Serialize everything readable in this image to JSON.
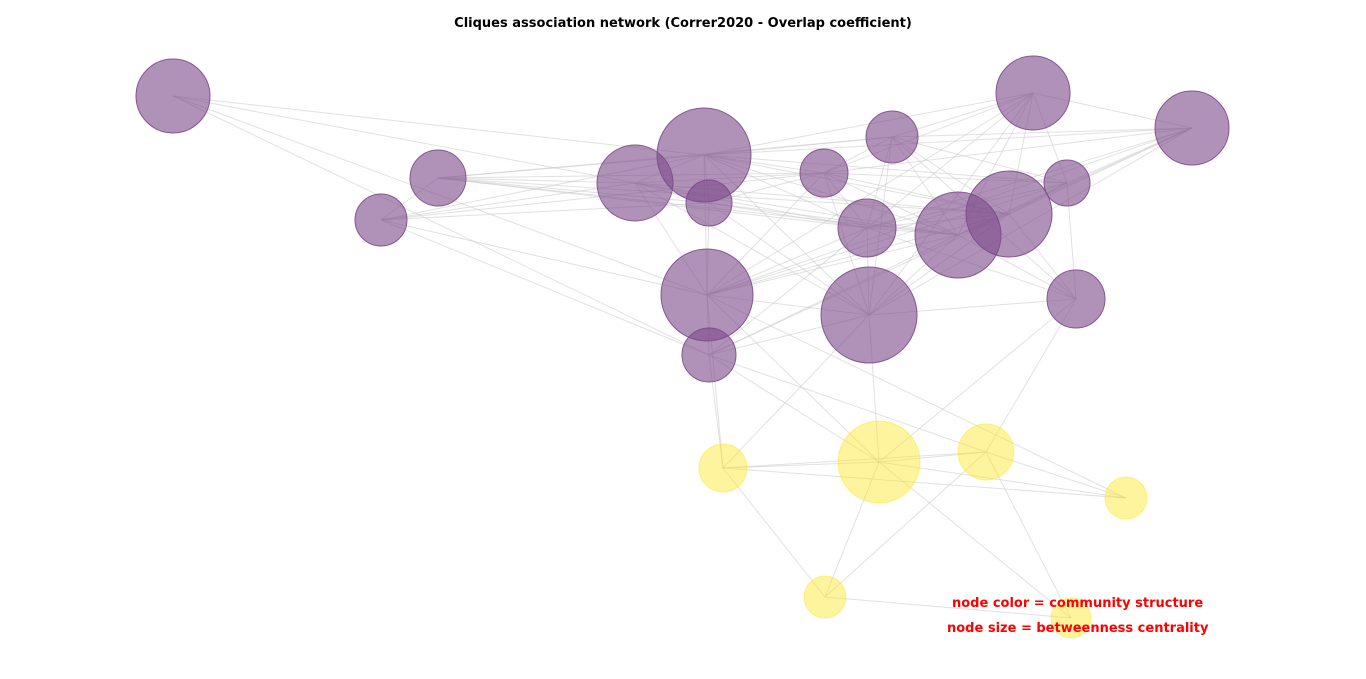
{
  "title": "Cliques association network (Correr2020 - Overlap coefficient)",
  "notes": {
    "color": "node color = community structure",
    "size": "node size = betweenness centrality"
  },
  "colors": {
    "community_0": "#7b4a8a",
    "community_1": "#fde725",
    "edge": "#c8c8c8",
    "note": "#ff0000"
  },
  "communities": [
    {
      "id": 0,
      "color": "purple"
    },
    {
      "id": 1,
      "color": "yellow"
    }
  ]
}
